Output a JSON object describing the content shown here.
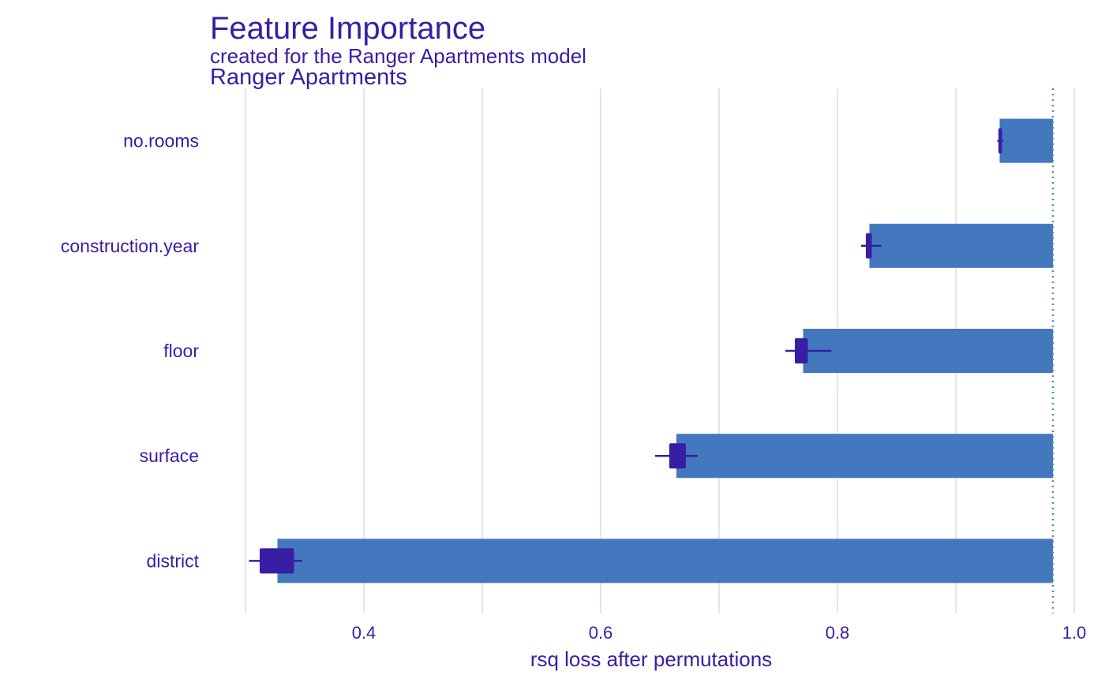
{
  "title": "Feature Importance",
  "subtitle": "created for the Ranger Apartments model",
  "panel_label": "Ranger Apartments",
  "colors": {
    "text": "#371ea3",
    "bar": "#4378bf",
    "box": "#371ea3",
    "grid": "#e5e5e5",
    "baseline": "#4a8fa8"
  },
  "chart_data": {
    "type": "bar",
    "orientation": "horizontal",
    "title": "Feature Importance",
    "subtitle": "created for the Ranger Apartments model",
    "facet": "Ranger Apartments",
    "xlabel": "rsq loss after permutations",
    "ylabel": "",
    "xlim": [
      0.3,
      1.0
    ],
    "xticks": [
      0.4,
      0.6,
      0.8,
      1.0
    ],
    "xtick_labels": [
      "0.4",
      "0.6",
      "0.8",
      "1.0"
    ],
    "grid": true,
    "baseline": 0.982,
    "categories": [
      "no.rooms",
      "construction.year",
      "floor",
      "surface",
      "district"
    ],
    "values": [
      0.937,
      0.827,
      0.771,
      0.664,
      0.327
    ],
    "boxplots": [
      {
        "min": 0.935,
        "q1": 0.936,
        "q3": 0.939,
        "max": 0.94
      },
      {
        "min": 0.82,
        "q1": 0.824,
        "q3": 0.829,
        "max": 0.837
      },
      {
        "min": 0.756,
        "q1": 0.764,
        "q3": 0.775,
        "max": 0.795
      },
      {
        "min": 0.646,
        "q1": 0.658,
        "q3": 0.672,
        "max": 0.682
      },
      {
        "min": 0.303,
        "q1": 0.312,
        "q3": 0.341,
        "max": 0.348
      }
    ]
  }
}
